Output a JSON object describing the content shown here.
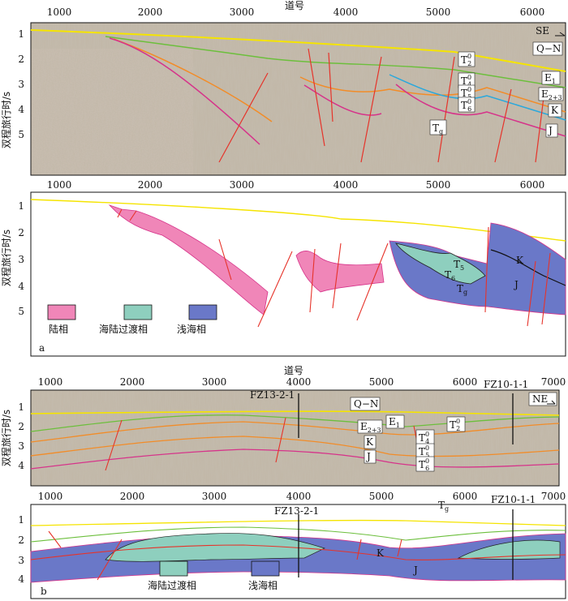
{
  "top_axis_label": "道号",
  "mid_axis_label": "道号",
  "y_axis_label": "双程旅行时/s",
  "traces_a": [
    "1000",
    "2000",
    "3000",
    "4000",
    "5000",
    "6000"
  ],
  "traces_b": [
    "1000",
    "2000",
    "3000",
    "4000",
    "5000",
    "6000",
    "7000"
  ],
  "times": [
    "1",
    "2",
    "3",
    "4",
    "5"
  ],
  "times_b": [
    "1",
    "2",
    "3",
    "4"
  ],
  "panel_a": {
    "letter": "a",
    "direction": "SE",
    "horizons": {
      "qn": "Q−N",
      "t2": "T",
      "t2_sup": "0",
      "t2_sub": "2",
      "t4": "T",
      "t4_sup": "0",
      "t4_sub": "4",
      "t5": "T",
      "t5_sup": "0",
      "t5_sub": "5",
      "t6": "T",
      "t6_sup": "0",
      "t6_sub": "6",
      "tg": "T",
      "tg_sub": "g",
      "e1": "E",
      "e1_sub": "1",
      "e23": "E",
      "e23_sub": "2+3",
      "k": "K",
      "j": "J"
    },
    "interp_labels": {
      "t5": "T",
      "t5_sub": "5",
      "t6": "T",
      "t6_sub": "6",
      "tg": "T",
      "tg_sub": "g",
      "k": "K",
      "j": "J"
    },
    "legend": [
      {
        "label": "陆相",
        "color": "#f086b8"
      },
      {
        "label": "海陆过渡相",
        "color": "#8ecfbe"
      },
      {
        "label": "浅海相",
        "color": "#6a78c8"
      }
    ]
  },
  "panel_b": {
    "letter": "b",
    "direction": "NE",
    "wells": [
      "FZ13-2-1",
      "FZ10-1-1"
    ],
    "horizons": {
      "qn": "Q−N",
      "e23": "E",
      "e23_sub": "2+3",
      "e1": "E",
      "e1_sub": "1",
      "t2": "T",
      "t2_sup": "0",
      "t2_sub": "2",
      "t4": "T",
      "t4_sup": "0",
      "t4_sub": "4",
      "t5": "T",
      "t5_sup": "0",
      "t5_sub": "5",
      "t6": "T",
      "t6_sup": "0",
      "t6_sub": "6",
      "tg": "T",
      "tg_sub": "g",
      "k": "K",
      "j": "J"
    },
    "interp_labels": {
      "k": "K",
      "j": "J"
    },
    "legend": [
      {
        "label": "海陆过渡相",
        "color": "#8ecfbe"
      },
      {
        "label": "浅海相",
        "color": "#6a78c8"
      }
    ]
  },
  "colors": {
    "seafloor": "#f5e400",
    "red_horizon": "#e6332a",
    "orange_horizon": "#f28c28",
    "blue_horizon": "#2aa8dc",
    "green_horizon": "#6cbf3c",
    "magenta_horizon": "#d6338a",
    "seismic_bg": "#b4aa99",
    "seismic_dark": "#8a7e6c",
    "continental": "#f086b8",
    "transitional": "#8ecfbe",
    "shallow_marine": "#6a78c8"
  }
}
